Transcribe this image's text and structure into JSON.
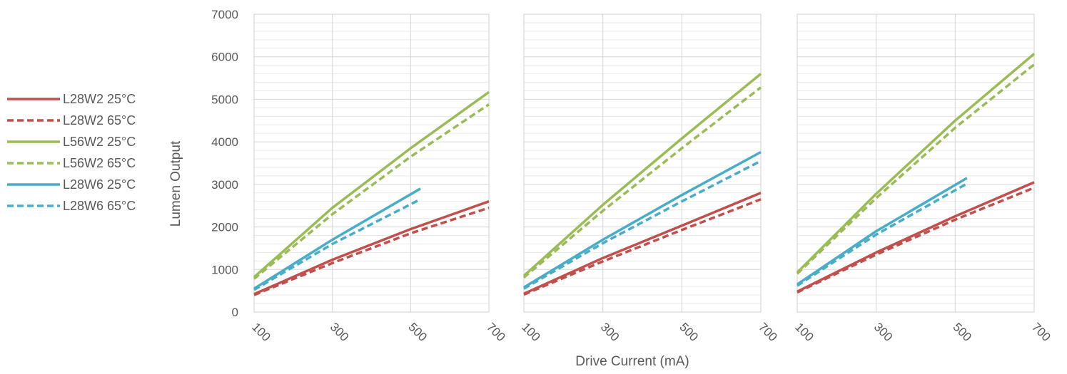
{
  "chart_data": {
    "type": "line",
    "ylabel": "Lumen Output",
    "xlabel": "Drive Current (mA)",
    "ylim": [
      0,
      7000
    ],
    "y_ticks": [
      0,
      1000,
      2000,
      3000,
      4000,
      5000,
      6000,
      7000
    ],
    "x_ticks": [
      100,
      300,
      500,
      700
    ],
    "xlim": [
      100,
      700
    ],
    "grid": true,
    "legend_position": "left",
    "legend": [
      {
        "name": "L28W2 25°C",
        "color": "#C0504D",
        "dash": false
      },
      {
        "name": "L28W2 65°C",
        "color": "#C0504D",
        "dash": true
      },
      {
        "name": "L56W2 25°C",
        "color": "#9BBB59",
        "dash": false
      },
      {
        "name": "L56W2 65°C",
        "color": "#9BBB59",
        "dash": true
      },
      {
        "name": "L28W6 25°C",
        "color": "#4BACC6",
        "dash": false
      },
      {
        "name": "L28W6 65°C",
        "color": "#4BACC6",
        "dash": true
      }
    ],
    "panels": [
      {
        "series": [
          {
            "name": "L28W2 25°C",
            "x": [
              100,
              300,
              500,
              700
            ],
            "y": [
              420,
              1230,
              1950,
              2600
            ]
          },
          {
            "name": "L28W2 65°C",
            "x": [
              100,
              300,
              500,
              700
            ],
            "y": [
              400,
              1150,
              1850,
              2450
            ]
          },
          {
            "name": "L56W2 25°C",
            "x": [
              100,
              300,
              500,
              700
            ],
            "y": [
              820,
              2450,
              3850,
              5170
            ]
          },
          {
            "name": "L56W2 65°C",
            "x": [
              100,
              300,
              500,
              700
            ],
            "y": [
              780,
              2300,
              3650,
              4880
            ]
          },
          {
            "name": "L28W6 25°C",
            "x": [
              100,
              300,
              525
            ],
            "y": [
              550,
              1700,
              2900
            ]
          },
          {
            "name": "L28W6 65°C",
            "x": [
              100,
              300,
              525
            ],
            "y": [
              520,
              1600,
              2650
            ]
          }
        ]
      },
      {
        "series": [
          {
            "name": "L28W2 25°C",
            "x": [
              100,
              300,
              500,
              700
            ],
            "y": [
              430,
              1270,
              2030,
              2800
            ]
          },
          {
            "name": "L28W2 65°C",
            "x": [
              100,
              300,
              500,
              700
            ],
            "y": [
              410,
              1190,
              1930,
              2650
            ]
          },
          {
            "name": "L56W2 25°C",
            "x": [
              100,
              300,
              500,
              700
            ],
            "y": [
              850,
              2520,
              4080,
              5600
            ]
          },
          {
            "name": "L56W2 65°C",
            "x": [
              100,
              300,
              500,
              700
            ],
            "y": [
              810,
              2380,
              3850,
              5280
            ]
          },
          {
            "name": "L28W6 25°C",
            "x": [
              100,
              300,
              500,
              700
            ],
            "y": [
              580,
              1700,
              2750,
              3760
            ]
          },
          {
            "name": "L28W6 65°C",
            "x": [
              100,
              300,
              500,
              700
            ],
            "y": [
              550,
              1620,
              2600,
              3550
            ]
          }
        ]
      },
      {
        "series": [
          {
            "name": "L28W2 25°C",
            "x": [
              100,
              300,
              500,
              700
            ],
            "y": [
              480,
              1400,
              2250,
              3050
            ]
          },
          {
            "name": "L28W2 65°C",
            "x": [
              100,
              300,
              500,
              700
            ],
            "y": [
              460,
              1350,
              2170,
              2920
            ]
          },
          {
            "name": "L56W2 25°C",
            "x": [
              100,
              300,
              500,
              700
            ],
            "y": [
              930,
              2780,
              4500,
              6070
            ]
          },
          {
            "name": "L56W2 65°C",
            "x": [
              100,
              300,
              500,
              700
            ],
            "y": [
              900,
              2680,
              4330,
              5820
            ]
          },
          {
            "name": "L28W6 25°C",
            "x": [
              100,
              300,
              530
            ],
            "y": [
              650,
              1900,
              3150
            ]
          },
          {
            "name": "L28W6 65°C",
            "x": [
              100,
              300,
              530
            ],
            "y": [
              620,
              1820,
              3020
            ]
          }
        ]
      }
    ]
  }
}
